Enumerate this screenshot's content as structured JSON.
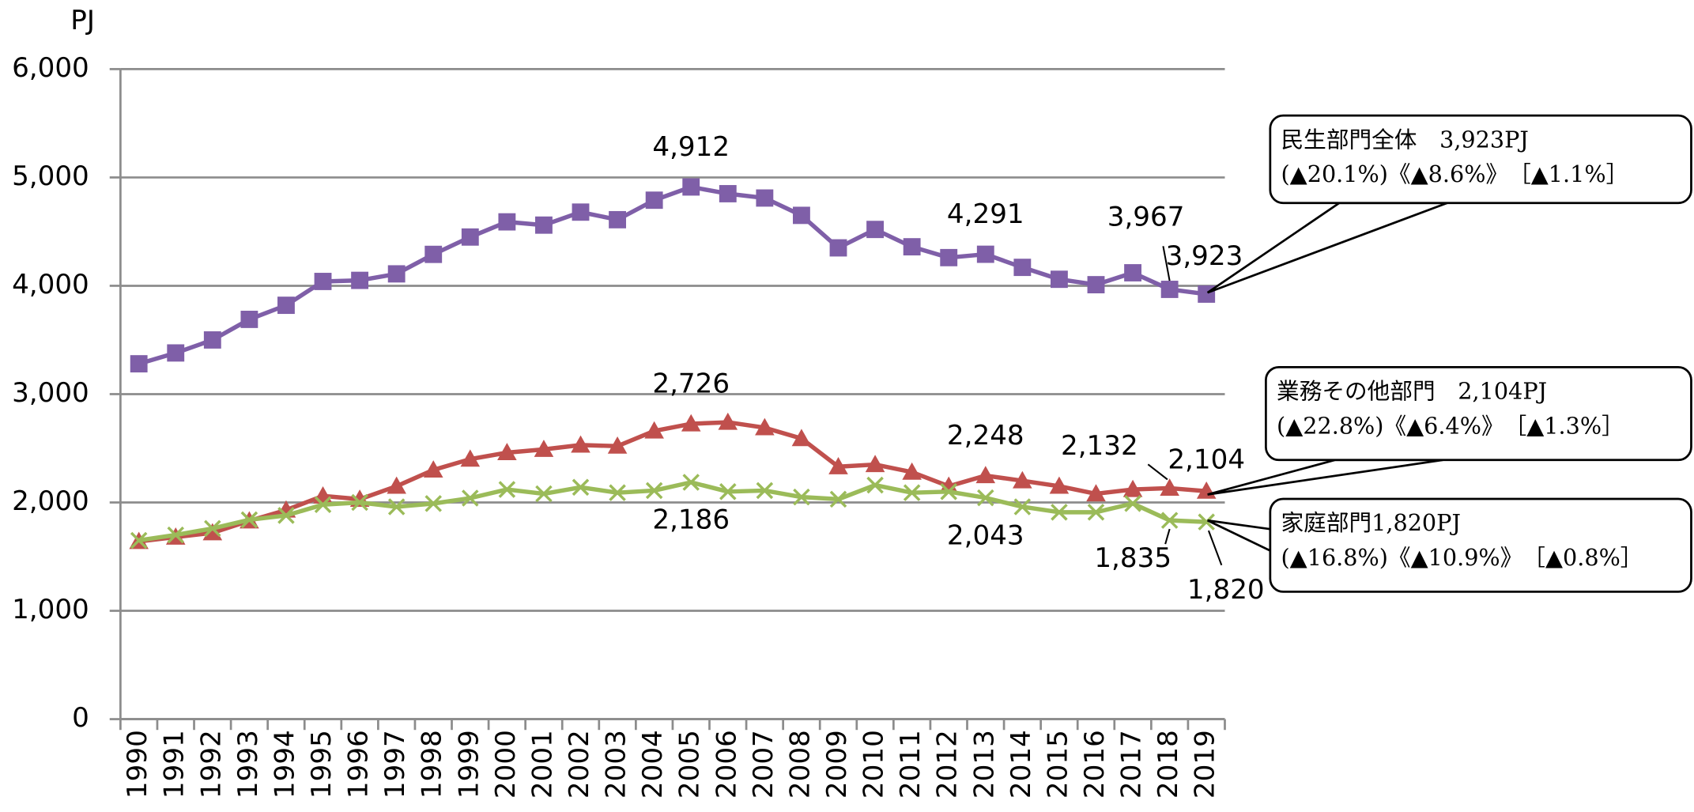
{
  "chart_data": {
    "type": "line",
    "ylabel": "PJ",
    "categories": [
      "1990",
      "1991",
      "1992",
      "1993",
      "1994",
      "1995",
      "1996",
      "1997",
      "1998",
      "1999",
      "2000",
      "2001",
      "2002",
      "2003",
      "2004",
      "2005",
      "2006",
      "2007",
      "2008",
      "2009",
      "2010",
      "2011",
      "2012",
      "2013",
      "2014",
      "2015",
      "2016",
      "2017",
      "2018",
      "2019"
    ],
    "ylim": [
      0,
      6000
    ],
    "yticks": [
      0,
      {
        "value": 1000,
        "label": "1,000"
      },
      {
        "value": 2000,
        "label": "2,000"
      },
      {
        "value": 3000,
        "label": "3,000"
      },
      {
        "value": 4000,
        "label": "4,000"
      },
      {
        "value": 5000,
        "label": "5,000"
      },
      {
        "value": 6000,
        "label": "6,000"
      }
    ],
    "grid": true,
    "series": [
      {
        "color": "#7f5fa8",
        "marker": "square",
        "values": [
          3280,
          3380,
          3500,
          3690,
          3820,
          4040,
          4050,
          4110,
          4290,
          4450,
          4590,
          4560,
          4680,
          4610,
          4790,
          4912,
          4850,
          4810,
          4650,
          4350,
          4520,
          4360,
          4260,
          4291,
          4170,
          4060,
          4010,
          4120,
          3967,
          3923
        ],
        "value_labels": [
          null,
          null,
          null,
          null,
          null,
          null,
          null,
          null,
          null,
          null,
          null,
          null,
          null,
          null,
          null,
          "4,912",
          null,
          null,
          null,
          null,
          null,
          null,
          null,
          "4,291",
          null,
          null,
          null,
          null,
          "3,967",
          "3,923"
        ]
      },
      {
        "color": "#c0504d",
        "marker": "triangle",
        "values": [
          1640,
          1680,
          1720,
          1830,
          1930,
          2060,
          2030,
          2150,
          2300,
          2400,
          2460,
          2490,
          2530,
          2520,
          2660,
          2726,
          2740,
          2690,
          2590,
          2330,
          2350,
          2280,
          2150,
          2248,
          2200,
          2150,
          2080,
          2120,
          2132,
          2104
        ],
        "value_labels": [
          null,
          null,
          null,
          null,
          null,
          null,
          null,
          null,
          null,
          null,
          null,
          null,
          null,
          null,
          null,
          "2,726",
          null,
          null,
          null,
          null,
          null,
          null,
          null,
          "2,248",
          null,
          null,
          null,
          null,
          "2,132",
          "2,104"
        ]
      },
      {
        "color": "#9bbb59",
        "marker": "x",
        "values": [
          1650,
          1700,
          1760,
          1840,
          1880,
          1980,
          2000,
          1960,
          1990,
          2040,
          2120,
          2080,
          2140,
          2090,
          2110,
          2186,
          2100,
          2110,
          2050,
          2030,
          2160,
          2090,
          2100,
          2043,
          1960,
          1910,
          1910,
          1990,
          1835,
          1820
        ],
        "value_labels": [
          null,
          null,
          null,
          null,
          null,
          null,
          null,
          null,
          null,
          null,
          null,
          null,
          null,
          null,
          null,
          "2,186",
          null,
          null,
          null,
          null,
          null,
          null,
          null,
          "2,043",
          null,
          null,
          null,
          null,
          "1,835",
          "1,820"
        ]
      }
    ],
    "annotations": [
      {
        "lines": [
          "民生部門全体　3,923PJ",
          "(▲20.1%)《▲8.6%》　［▲1.1%］"
        ]
      },
      {
        "lines": [
          "業務その他部門　2,104PJ",
          "(▲22.8%)《▲6.4%》　［▲1.3%］"
        ]
      },
      {
        "lines": [
          "家庭部門1,820PJ",
          "(▲16.8%)《▲10.9%》　［▲0.8%］"
        ]
      }
    ]
  }
}
